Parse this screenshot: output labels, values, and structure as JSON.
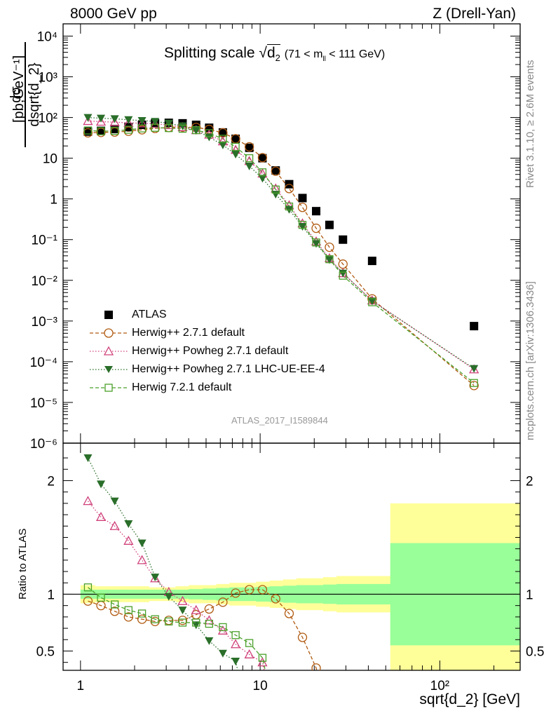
{
  "header": {
    "left": "8000 GeV pp",
    "right": "Z (Drell-Yan)"
  },
  "side_labels": {
    "rivet": "Rivet 3.1.10, ≥ 2.6M events",
    "mcplots": "mcplots.cern.ch [arXiv:1306.3436]"
  },
  "title": {
    "main": "Splitting scale",
    "symbol": "d",
    "subscript": "2",
    "range": "(71 < m",
    "range_sub": "ll",
    "range_end": " < 111 GeV)"
  },
  "yaxis": {
    "numerator": "dσ",
    "denominator": "dsqrt{d_2}",
    "unit": "[pb,GeV⁻¹]",
    "ratio_label": "Ratio to ATLAS"
  },
  "xaxis": {
    "label": "sqrt{d_2} [GeV]"
  },
  "reference": "ATLAS_2017_I1589844",
  "colors": {
    "atlas": "#000000",
    "herwigpp": "#b05a10",
    "powheg": "#d0407a",
    "powheg_ue": "#2a6e2a",
    "herwig7": "#4aa02a",
    "band_inner": "#99ff99",
    "band_outer": "#ffff99"
  },
  "chart_data": {
    "type": "scatter",
    "x_scale": "log",
    "y_scale": "log",
    "xlim": [
      0.8,
      280
    ],
    "ylim": [
      1e-06,
      20000.0
    ],
    "ratio_ylim": [
      0.33,
      2.33
    ],
    "legend_position": "bottom-left",
    "series": [
      {
        "name": "ATLAS",
        "style": "atlas",
        "x": [
          1.1,
          1.3,
          1.55,
          1.85,
          2.2,
          2.6,
          3.1,
          3.7,
          4.4,
          5.2,
          6.2,
          7.3,
          8.7,
          10.3,
          12.2,
          14.5,
          17.2,
          20.5,
          24.3,
          28.9,
          42,
          155
        ],
        "y": [
          45,
          47,
          52,
          58,
          66,
          72,
          74,
          72,
          66,
          56,
          43,
          30,
          18,
          10,
          5,
          2.3,
          1.05,
          0.5,
          0.23,
          0.1,
          0.03,
          0.00075
        ]
      },
      {
        "name": "Herwig++ 2.7.1 default",
        "style": "herwigpp",
        "x": [
          1.1,
          1.3,
          1.55,
          1.85,
          2.2,
          2.6,
          3.1,
          3.7,
          4.4,
          5.2,
          6.2,
          7.3,
          8.7,
          10.3,
          12.2,
          14.5,
          17.2,
          20.5,
          24.3,
          28.9,
          42,
          155
        ],
        "y": [
          42,
          43,
          44,
          46,
          50,
          54,
          57,
          58,
          57,
          51,
          42,
          30,
          19,
          10.3,
          4.8,
          1.8,
          0.62,
          0.19,
          0.065,
          0.025,
          0.0035,
          2.6e-05
        ],
        "ratio": [
          0.94,
          0.9,
          0.85,
          0.8,
          0.78,
          0.76,
          0.77,
          0.77,
          0.82,
          0.87,
          0.93,
          1.01,
          1.04,
          1.04,
          0.96,
          0.83,
          0.62,
          0.35,
          null,
          null,
          null,
          null
        ]
      },
      {
        "name": "Herwig++ Powheg 2.7.1 default",
        "style": "powheg",
        "x": [
          1.1,
          1.3,
          1.55,
          1.85,
          2.2,
          2.6,
          3.1,
          3.7,
          4.4,
          5.2,
          6.2,
          7.3,
          8.7,
          10.3,
          12.2,
          14.5,
          17.2,
          20.5,
          24.3,
          28.9,
          42,
          155
        ],
        "y": [
          82,
          79,
          77,
          74,
          72,
          70,
          65,
          58,
          49,
          38,
          26,
          16,
          8.5,
          4.2,
          1.8,
          0.7,
          0.25,
          0.09,
          0.035,
          0.015,
          0.0032,
          6.5e-05
        ],
        "ratio": [
          1.82,
          1.68,
          1.6,
          1.47,
          1.3,
          1.14,
          1.02,
          0.94,
          0.86,
          0.77,
          0.68,
          0.56,
          0.47,
          0.4,
          null,
          null,
          null,
          null,
          null,
          null,
          null,
          null
        ]
      },
      {
        "name": "Herwig++ Powheg 2.7.1 LHC-UE-EE-4",
        "style": "powheg_ue",
        "x": [
          1.1,
          1.3,
          1.55,
          1.85,
          2.2,
          2.6,
          3.1,
          3.7,
          4.4,
          5.2,
          6.2,
          7.3,
          8.7,
          10.3,
          12.2,
          14.5,
          17.2,
          20.5,
          24.3,
          28.9,
          42,
          155
        ],
        "y": [
          100,
          96,
          93,
          88,
          84,
          80,
          72,
          62,
          48,
          33,
          21,
          12.5,
          6.4,
          3.2,
          1.3,
          0.55,
          0.21,
          0.08,
          0.032,
          0.015,
          0.0031,
          6.8e-05
        ],
        "ratio": [
          2.2,
          1.97,
          1.82,
          1.62,
          1.45,
          1.15,
          0.98,
          0.86,
          0.73,
          0.59,
          0.48,
          0.41,
          null,
          null,
          null,
          null,
          null,
          null,
          null,
          null,
          null,
          null
        ]
      },
      {
        "name": "Herwig 7.2.1 default",
        "style": "herwig7",
        "x": [
          1.1,
          1.3,
          1.55,
          1.85,
          2.2,
          2.6,
          3.1,
          3.7,
          4.4,
          5.2,
          6.2,
          7.3,
          8.7,
          10.3,
          12.2,
          14.5,
          17.2,
          20.5,
          24.3,
          28.9,
          42,
          155
        ],
        "y": [
          48,
          46,
          47,
          50,
          54,
          56,
          55,
          53,
          49,
          41,
          30,
          19,
          10,
          4.5,
          1.7,
          0.65,
          0.23,
          0.085,
          0.033,
          0.013,
          0.0029,
          3e-05
        ],
        "ratio": [
          1.06,
          0.97,
          0.91,
          0.86,
          0.83,
          0.78,
          0.76,
          0.75,
          0.75,
          0.74,
          0.71,
          0.64,
          0.57,
          0.44,
          null,
          null,
          null,
          null,
          null,
          null,
          null,
          null
        ]
      }
    ],
    "ratio_band": {
      "edges": [
        1.0,
        1.2,
        1.42,
        1.69,
        2.0,
        2.4,
        2.85,
        3.38,
        4.0,
        4.8,
        5.7,
        6.75,
        8.0,
        9.5,
        11.3,
        13.4,
        15.9,
        18.9,
        22.4,
        26.6,
        31.6,
        53,
        280
      ],
      "inner": [
        0.04,
        0.04,
        0.04,
        0.04,
        0.04,
        0.04,
        0.04,
        0.04,
        0.045,
        0.05,
        0.055,
        0.06,
        0.06,
        0.065,
        0.07,
        0.075,
        0.08,
        0.08,
        0.085,
        0.09,
        0.09,
        0.45
      ],
      "outer": [
        0.08,
        0.07,
        0.07,
        0.07,
        0.07,
        0.06,
        0.06,
        0.07,
        0.08,
        0.08,
        0.09,
        0.1,
        0.1,
        0.11,
        0.12,
        0.13,
        0.14,
        0.14,
        0.15,
        0.16,
        0.16,
        0.8
      ]
    },
    "x_ticks": [
      "1",
      "10",
      "10²"
    ],
    "y_ticks": [
      "10⁻⁶",
      "10⁻⁵",
      "10⁻⁴",
      "10⁻³",
      "10⁻²",
      "10⁻¹",
      "1",
      "10",
      "10²",
      "10³",
      "10⁴"
    ],
    "ratio_ticks": [
      "0.5",
      "1",
      "2"
    ]
  }
}
